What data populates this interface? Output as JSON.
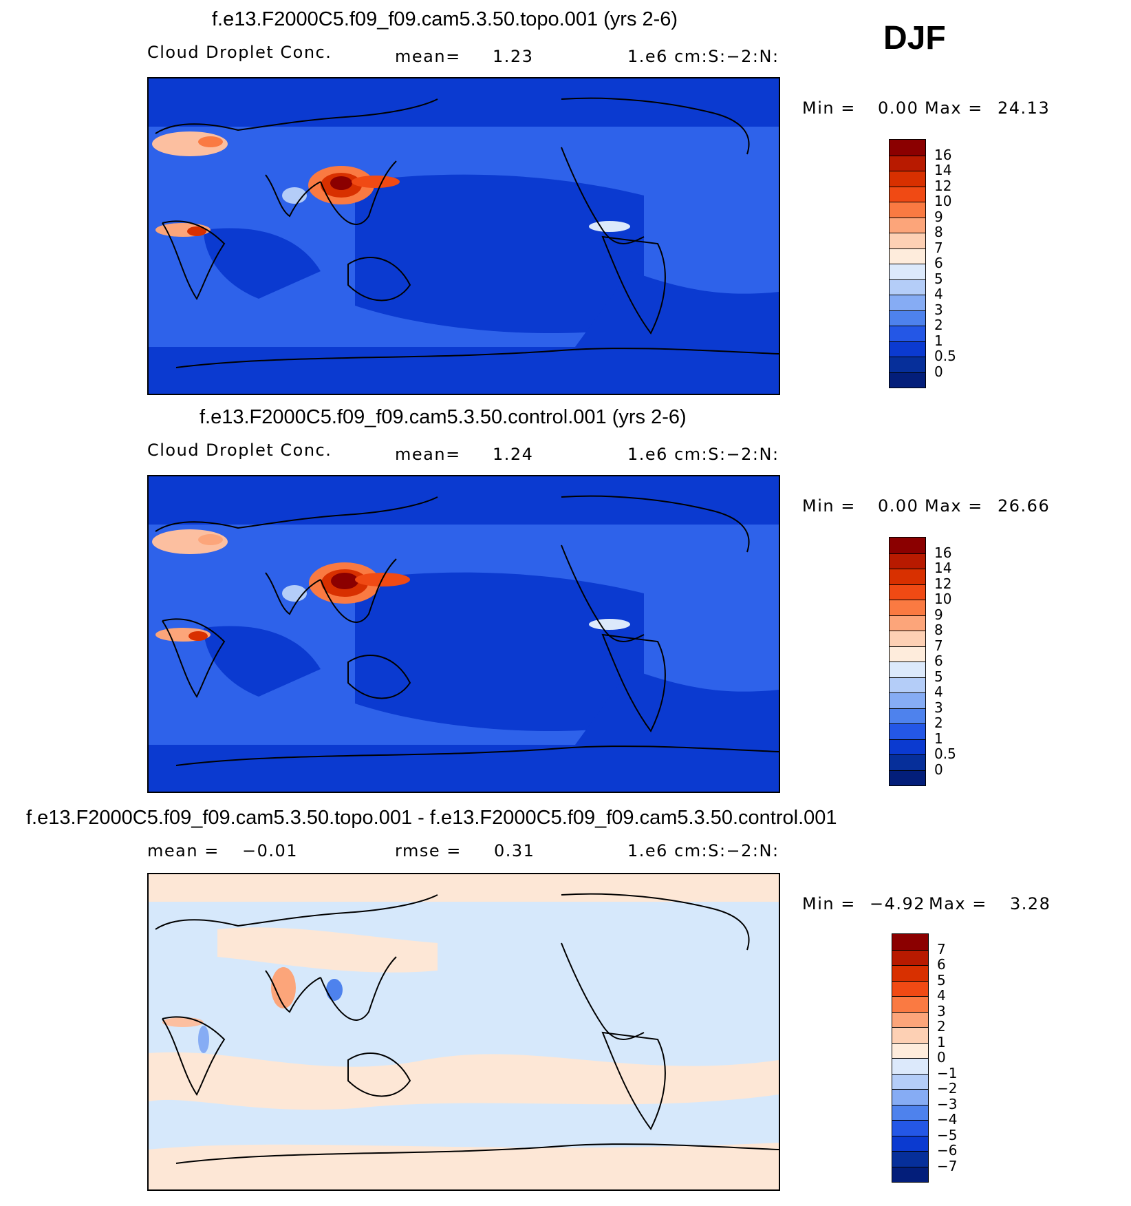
{
  "season": "DJF",
  "panels": [
    {
      "title": "f.e13.F2000C5.f09_f09.cam5.3.50.topo.001 (yrs 2-6)",
      "left_label": "Cloud Droplet Conc.",
      "mid_label": "mean=",
      "mid_value": "1.23",
      "units": "1.e6 cm:S:−2:N:",
      "min_label": "Min =",
      "min_value": "0.00",
      "max_label": "Max =",
      "max_value": "24.13",
      "levels": [
        "16",
        "14",
        "12",
        "10",
        "9",
        "8",
        "7",
        "6",
        "5",
        "4",
        "3",
        "2",
        "1",
        "0.5",
        "0"
      ]
    },
    {
      "title": "f.e13.F2000C5.f09_f09.cam5.3.50.control.001 (yrs 2-6)",
      "left_label": "Cloud Droplet Conc.",
      "mid_label": "mean=",
      "mid_value": "1.24",
      "units": "1.e6 cm:S:−2:N:",
      "min_label": "Min =",
      "min_value": "0.00",
      "max_label": "Max =",
      "max_value": "26.66",
      "levels": [
        "16",
        "14",
        "12",
        "10",
        "9",
        "8",
        "7",
        "6",
        "5",
        "4",
        "3",
        "2",
        "1",
        "0.5",
        "0"
      ]
    },
    {
      "title": "f.e13.F2000C5.f09_f09.cam5.3.50.topo.001 - f.e13.F2000C5.f09_f09.cam5.3.50.control.001",
      "left_label": "mean =",
      "left_value": "−0.01",
      "mid_label": "rmse =",
      "mid_value": "0.31",
      "units": "1.e6 cm:S:−2:N:",
      "min_label": "Min =",
      "min_value": "−4.92",
      "max_label": "Max =",
      "max_value": "3.28",
      "levels": [
        "7",
        "6",
        "5",
        "4",
        "3",
        "2",
        "1",
        "0",
        "−1",
        "−2",
        "−3",
        "−4",
        "−5",
        "−6",
        "−7"
      ]
    }
  ],
  "colors": {
    "abs_scale": [
      "#8b0000",
      "#b81a00",
      "#d83000",
      "#f04a14",
      "#fa7a42",
      "#fca57a",
      "#fdd0b4",
      "#feecdc",
      "#dce9fb",
      "#b4cdf8",
      "#86acf4",
      "#4e82ed",
      "#2457e6",
      "#0b3ad0",
      "#062f9a",
      "#031e7a"
    ],
    "diff_scale": [
      "#8b0000",
      "#b81a00",
      "#d83000",
      "#f04a14",
      "#fa7a42",
      "#fca57a",
      "#fdd0b4",
      "#feecdc",
      "#dce9fb",
      "#b4cdf8",
      "#86acf4",
      "#4e82ed",
      "#2457e6",
      "#0b3ad0",
      "#062f9a",
      "#031e7a"
    ],
    "ocean_low": "#0a2fc2",
    "diff_pos": "#fde7d6",
    "diff_neg": "#d6e8fb"
  }
}
